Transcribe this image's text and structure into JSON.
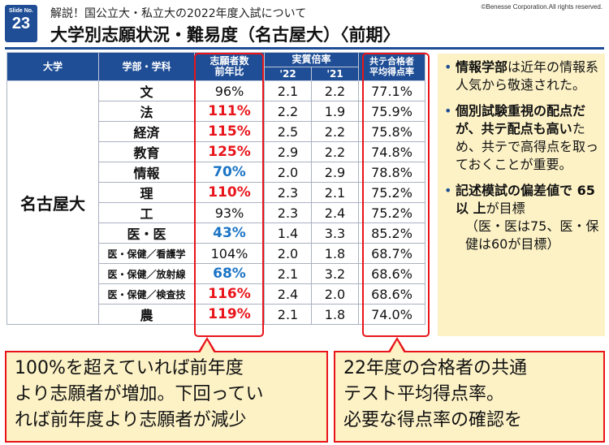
{
  "slide": {
    "label": "Slide No.",
    "number": "23"
  },
  "copyright": "©Benesse Corporation.All rights reserved.",
  "subtitle": "解説！国公立大・私立大の2022年度入試について",
  "title": "大学別志願状況・難易度（名古屋大）〈前期〉",
  "table": {
    "headers": {
      "university": "大学",
      "department": "学部・学科",
      "applicants_line1": "志願者数",
      "applicants_line2": "前年比",
      "ratio": "実質倍率",
      "ratio_22": "'22",
      "ratio_21": "'21",
      "score_line1": "共テ合格者",
      "score_line2": "平均得点率"
    },
    "university": "名古屋大",
    "rows": [
      {
        "dept": "文",
        "applicants": "96%",
        "tone": "plain",
        "r22": "2.1",
        "r21": "2.2",
        "score": "77.1%"
      },
      {
        "dept": "法",
        "applicants": "111%",
        "tone": "red",
        "r22": "2.2",
        "r21": "1.9",
        "score": "75.9%"
      },
      {
        "dept": "経済",
        "applicants": "115%",
        "tone": "red",
        "r22": "2.5",
        "r21": "2.2",
        "score": "75.8%"
      },
      {
        "dept": "教育",
        "applicants": "125%",
        "tone": "red",
        "r22": "2.9",
        "r21": "2.2",
        "score": "74.8%"
      },
      {
        "dept": "情報",
        "applicants": "70%",
        "tone": "blue",
        "r22": "2.0",
        "r21": "2.9",
        "score": "78.8%"
      },
      {
        "dept": "理",
        "applicants": "110%",
        "tone": "red",
        "r22": "2.3",
        "r21": "2.1",
        "score": "75.2%"
      },
      {
        "dept": "工",
        "applicants": "93%",
        "tone": "plain",
        "r22": "2.3",
        "r21": "2.4",
        "score": "75.2%"
      },
      {
        "dept": "医・医",
        "applicants": "43%",
        "tone": "blue",
        "r22": "1.4",
        "r21": "3.3",
        "score": "85.2%"
      },
      {
        "dept": "医・保健／看護学",
        "applicants": "104%",
        "tone": "plain",
        "r22": "2.0",
        "r21": "1.8",
        "score": "68.7%"
      },
      {
        "dept": "医・保健／放射線",
        "applicants": "68%",
        "tone": "blue",
        "r22": "2.1",
        "r21": "3.2",
        "score": "68.6%"
      },
      {
        "dept": "医・保健／検査技",
        "applicants": "116%",
        "tone": "red",
        "r22": "2.4",
        "r21": "2.0",
        "score": "68.6%"
      },
      {
        "dept": "農",
        "applicants": "119%",
        "tone": "red",
        "r22": "2.1",
        "r21": "1.8",
        "score": "74.0%"
      }
    ]
  },
  "notes": [
    {
      "bold": "情報学部",
      "rest": "は近年の情報系人気から敬遠された。"
    },
    {
      "bold": "個別試験重視の配点だが、共テ配点も高い",
      "rest": "ため、共テで高得点を取っておくことが重要。"
    },
    {
      "bold": "記述模試の偏差値で 65 以 上",
      "rest": "が目標",
      "sub": "（医・医は75、医・保健は60が目標）"
    }
  ],
  "callouts": {
    "left": [
      "100%を超えていれば前年度",
      "より志願者が増加。下回ってい",
      "れば前年度より志願者が減少"
    ],
    "right": [
      "22年度の合格者の共通",
      "テスト平均得点率。",
      "必要な得点率の確認を"
    ]
  },
  "colors": {
    "brand": "#1f4e96",
    "increase": "#e8141a",
    "decrease": "#1b74c5",
    "note_bg": "#fdf2c6"
  }
}
